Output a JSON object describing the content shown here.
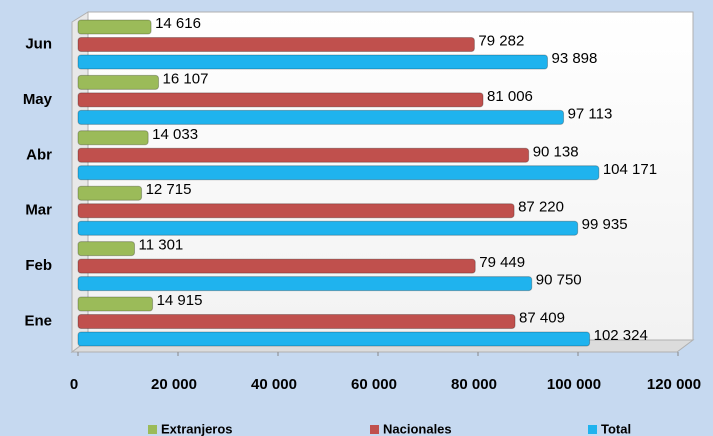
{
  "chart_data": {
    "type": "bar",
    "orientation": "horizontal",
    "categories": [
      "Ene",
      "Feb",
      "Mar",
      "Abr",
      "May",
      "Jun"
    ],
    "series": [
      {
        "name": "Extranjeros",
        "color": "#9bbb59",
        "values": [
          14915,
          11301,
          12715,
          14033,
          16107,
          14616
        ],
        "value_labels": [
          "14 915",
          "11 301",
          "12 715",
          "14 033",
          "16 107",
          "14 616"
        ]
      },
      {
        "name": "Nacionales",
        "color": "#c0504d",
        "values": [
          87409,
          79449,
          87220,
          90138,
          81006,
          79282
        ],
        "value_labels": [
          "87 409",
          "79 449",
          "87 220",
          "90 138",
          "81 006",
          "79 282"
        ]
      },
      {
        "name": "Total",
        "color": "#1fb3ee",
        "values": [
          102324,
          90750,
          99935,
          104171,
          97113,
          93898
        ],
        "value_labels": [
          "102 324",
          "90 750",
          "99 935",
          "104 171",
          "97 113",
          "93 898"
        ]
      }
    ],
    "xlim": [
      0,
      120000
    ],
    "xticks": [
      0,
      {
        "value": 20000,
        "label": "20 000"
      },
      {
        "value": 40000,
        "label": "40 000"
      },
      {
        "value": 60000,
        "label": "60 000"
      },
      {
        "value": 80000,
        "label": "80 000"
      },
      {
        "value": 100000,
        "label": "100 000"
      },
      {
        "value": 120000,
        "label": "120 000"
      }
    ],
    "legend": "bottom"
  }
}
